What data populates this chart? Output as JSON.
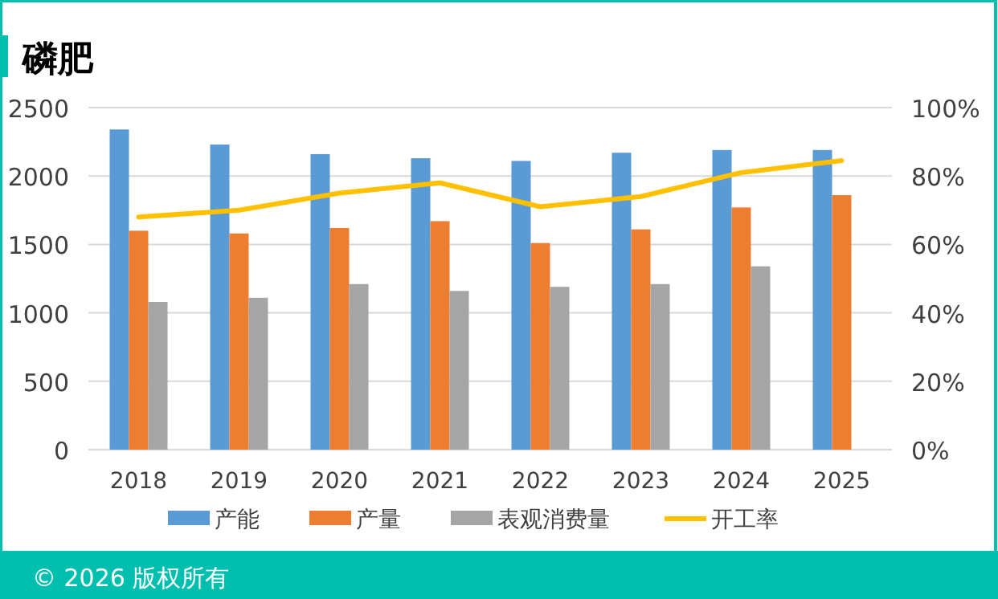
{
  "chart_data": {
    "type": "bar",
    "title": "磷肥",
    "categories": [
      "2018",
      "2019",
      "2020",
      "2021",
      "2022",
      "2023",
      "2024",
      "2025"
    ],
    "series": [
      {
        "name": "产能",
        "color": "#5b9bd5",
        "values": [
          2340,
          2230,
          2160,
          2130,
          2110,
          2170,
          2190,
          2190
        ]
      },
      {
        "name": "产量",
        "color": "#ed7d31",
        "values": [
          1600,
          1580,
          1620,
          1670,
          1510,
          1610,
          1770,
          1860
        ]
      },
      {
        "name": "表观消费量",
        "color": "#a5a5a5",
        "values": [
          1080,
          1110,
          1210,
          1160,
          1190,
          1210,
          1340,
          null
        ]
      },
      {
        "name": "开工率",
        "color": "#ffc000",
        "type": "line",
        "axis": "y2",
        "line_style": "solid",
        "values": [
          68,
          70,
          75,
          78,
          71,
          74,
          81,
          84.5
        ]
      }
    ],
    "ylim": [
      0,
      2500
    ],
    "yticks": [
      0,
      500,
      1000,
      1500,
      2000,
      2500
    ],
    "y2lim": [
      0,
      100
    ],
    "y2ticks": [
      {
        "value": 0,
        "label": "0%"
      },
      {
        "value": 20,
        "label": "20%"
      },
      {
        "value": 40,
        "label": "40%"
      },
      {
        "value": 60,
        "label": "60%"
      },
      {
        "value": 80,
        "label": "80%"
      },
      {
        "value": 100,
        "label": "100%"
      }
    ],
    "grid": "y",
    "legend": "bottom",
    "marker": "none",
    "annotations": [
      "© 2026 版权所有"
    ]
  }
}
